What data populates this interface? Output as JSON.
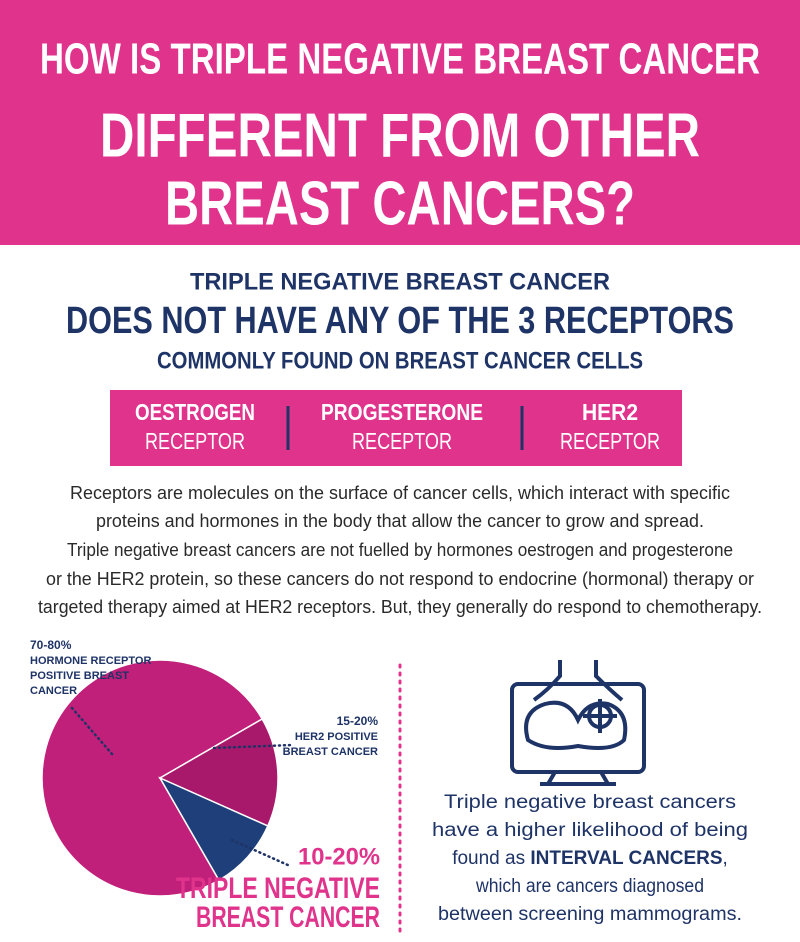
{
  "header": {
    "lines": [
      "HOW IS TRIPLE NEGATIVE BREAST CANCER",
      "DIFFERENT FROM OTHER",
      "BREAST CANCERS?"
    ]
  },
  "intro": {
    "lines": [
      "TRIPLE NEGATIVE BREAST CANCER",
      "DOES NOT HAVE ANY OF THE 3 RECEPTORS",
      "COMMONLY FOUND ON BREAST CANCER CELLS"
    ]
  },
  "receptors": [
    {
      "name": "OESTROGEN",
      "label": "RECEPTOR"
    },
    {
      "name": "PROGESTERONE",
      "label": "RECEPTOR"
    },
    {
      "name": "HER2",
      "label": "RECEPTOR"
    }
  ],
  "body": [
    "Receptors are molecules on the surface of cancer cells, which interact with specific",
    "proteins and hormones in the body that allow the cancer to grow and spread.",
    "Triple negative breast cancers are not fuelled by hormones oestrogen and progesterone",
    "or the HER2 protein, so these cancers do not respond to endocrine (hormonal) therapy or",
    "targeted therapy aimed at HER2 receptors. But, they generally do respond to chemotherapy."
  ],
  "chart_data": {
    "type": "pie",
    "categories": [
      [
        "HORMONE RECEPTOR",
        "POSITIVE BREAST",
        "CANCER"
      ],
      [
        "HER2 POSITIVE",
        "BREAST CANCER"
      ],
      [
        "TRIPLE NEGATIVE",
        "BREAST CANCER"
      ]
    ],
    "values": [
      75,
      15,
      10
    ],
    "value_labels": [
      "70-80%",
      "15-20%",
      "10-20%"
    ],
    "colors": [
      "#c01f7a",
      "#a8186b",
      "#1f3f7a"
    ]
  },
  "side_text": {
    "line1": "Triple negative breast cancers",
    "line2": "have a higher likelihood of being",
    "line3a": "found as",
    "line3b": "INTERVAL CANCERS",
    "line3c": ",",
    "line4": "which are cancers diagnosed",
    "line5": "between screening mammograms."
  }
}
